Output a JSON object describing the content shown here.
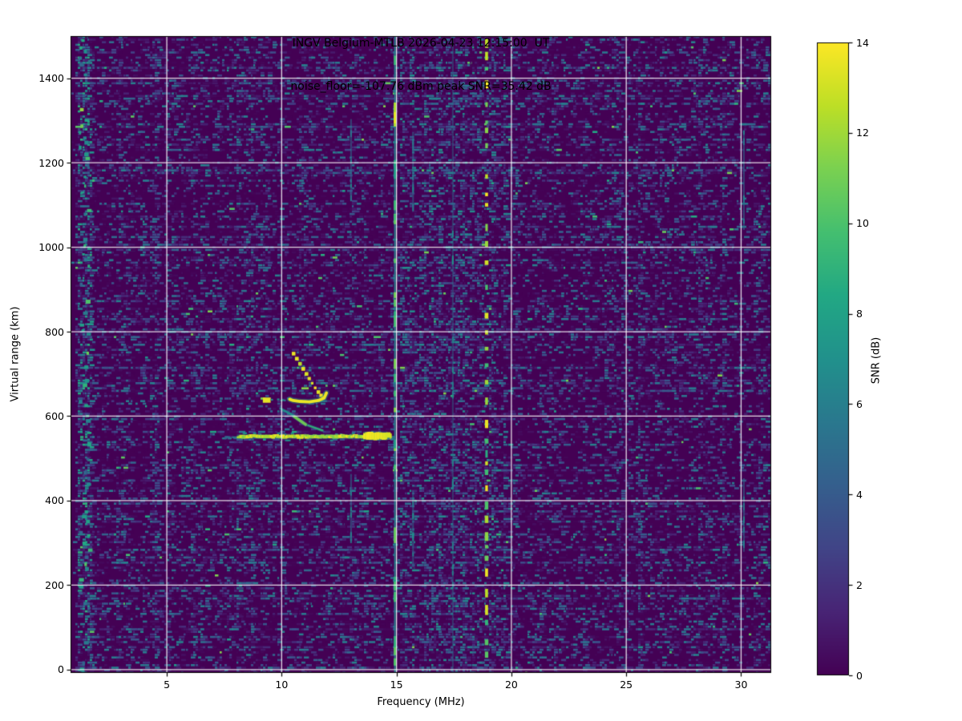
{
  "chart_data": {
    "type": "heatmap",
    "title_line1": "INGV Belgium-MTLB 2026-04-23 12:15:00  UT",
    "title_line2": "noise_floor=-107.76 dBm peak SNR=35.42 dB",
    "station": "INGV Belgium-MTLB",
    "datetime_ut": "2026-04-23 12:15:00",
    "noise_floor_dbm": -107.76,
    "peak_snr_db": 35.42,
    "xlabel": "Frequency (MHz)",
    "ylabel": "Virtual range (km)",
    "xlim_mhz": [
      0.81,
      31.31
    ],
    "ylim_km": [
      -8,
      1500
    ],
    "xticks_mhz": [
      5,
      10,
      15,
      20,
      25,
      30
    ],
    "yticks_km": [
      0,
      200,
      400,
      600,
      800,
      1000,
      1200,
      1400
    ],
    "grid": true,
    "colormap": "viridis",
    "colors": {
      "background": "#440154",
      "peak": "#fde725",
      "grid": "#ffffff",
      "figure_bg": "#ffffff"
    },
    "colorbar": {
      "label": "SNR (dB)",
      "ticks_db": [
        0,
        2,
        4,
        6,
        8,
        10,
        12,
        14
      ],
      "vmin_db": 0,
      "vmax_db": 14
    },
    "echo_traces": {
      "f_layer_main": {
        "label": "F-layer echo trace",
        "segments": [
          {
            "f0_mhz": 7.35,
            "f1_mhz": 8.05,
            "range_km": 551,
            "snr_db": 6,
            "style": "faint"
          },
          {
            "f0_mhz": 8.05,
            "f1_mhz": 13.55,
            "range_km": 552,
            "snr_db": 14,
            "style": "bright"
          },
          {
            "f0_mhz": 13.55,
            "f1_mhz": 14.6,
            "range_km": 553,
            "snr_db": 14,
            "style": "thick"
          },
          {
            "f0_mhz": 14.6,
            "f1_mhz": 14.95,
            "range_km": 550,
            "snr_db": 6,
            "style": "faint"
          }
        ]
      },
      "cusp": {
        "label": "near-foF2 cusp",
        "descending_dots": [
          [
            10.52,
            748
          ],
          [
            10.66,
            736
          ],
          [
            10.8,
            724
          ],
          [
            10.94,
            712
          ],
          [
            11.08,
            700
          ],
          [
            11.2,
            689
          ],
          [
            11.33,
            678
          ],
          [
            11.46,
            667
          ],
          [
            11.6,
            657
          ],
          [
            11.72,
            649
          ]
        ],
        "hook_points": [
          [
            11.95,
            655
          ],
          [
            11.85,
            643
          ],
          [
            11.6,
            637
          ],
          [
            11.2,
            634
          ],
          [
            10.8,
            635
          ],
          [
            10.5,
            637
          ],
          [
            10.35,
            640
          ]
        ],
        "hook_snr_db": 14,
        "left_blob": {
          "f0_mhz": 9.18,
          "f1_mhz": 9.52,
          "range_km": 638,
          "snr_db": 14
        },
        "left_tail": {
          "f0_mhz": 9.52,
          "f1_mhz": 10.32,
          "range_km": 640,
          "snr_db": 6
        },
        "diagonal_segments": [
          {
            "f0_mhz": 9.95,
            "r0_km": 618,
            "f1_mhz": 10.5,
            "r1_km": 602,
            "snr_db": 7
          },
          {
            "f0_mhz": 10.55,
            "r0_km": 599,
            "f1_mhz": 11.05,
            "r1_km": 580,
            "snr_db": 11
          },
          {
            "f0_mhz": 11.15,
            "r0_km": 578,
            "f1_mhz": 11.78,
            "r1_km": 566,
            "snr_db": 9
          }
        ]
      }
    },
    "rfi_lines": [
      {
        "freq_mhz": 1.4,
        "kind": "broadband",
        "snr_db": 10
      },
      {
        "freq_mhz": 13.02,
        "kind": "intermittent",
        "snr_db": 5
      },
      {
        "freq_mhz": 14.93,
        "kind": "continuous",
        "snr_db": 8
      },
      {
        "freq_mhz": 15.72,
        "kind": "intermittent",
        "snr_db": 5
      },
      {
        "freq_mhz": 17.45,
        "kind": "faint-continuous",
        "snr_db": 6
      },
      {
        "freq_mhz": 18.92,
        "kind": "strong-dotted",
        "snr_db": 13
      },
      {
        "freq_mhz": 30.12,
        "kind": "intermittent",
        "snr_db": 5
      }
    ],
    "noise_bands": [
      {
        "f0_mhz": 1.1,
        "f1_mhz": 1.72,
        "boost": "strong"
      },
      {
        "f0_mhz": 15.05,
        "f1_mhz": 19.9,
        "boost": "moderate"
      },
      {
        "f0_mhz": 12.8,
        "f1_mhz": 13.25,
        "boost": "slight"
      }
    ]
  }
}
